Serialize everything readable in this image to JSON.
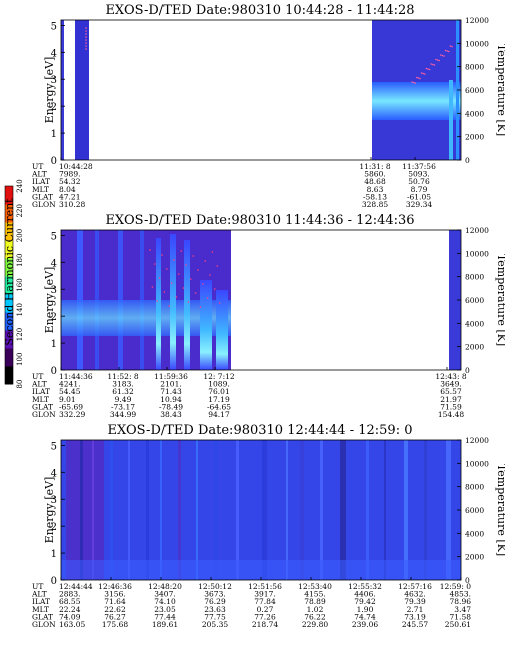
{
  "colorbar": {
    "label": "Second Harmonic Current",
    "ticks": [
      "80",
      "100",
      "120",
      "140",
      "160",
      "180",
      "200",
      "220",
      "240"
    ],
    "colors": [
      "#000000",
      "#3a0058",
      "#5a10b0",
      "#2060ff",
      "#00c8ff",
      "#20f0a0",
      "#80ff40",
      "#f0ff20",
      "#ffc000",
      "#ff6000",
      "#e01010"
    ]
  },
  "panels": [
    {
      "title": "EXOS-D/TED   Date:980310  10:44:28 - 11:44:28",
      "ylabel": "Energy [eV]",
      "y2label": "Temperature [K]",
      "yticks": [
        "0",
        "1",
        "2",
        "3",
        "4",
        "5"
      ],
      "y2ticks": [
        "0",
        "2000",
        "4000",
        "6000",
        "8000",
        "10000",
        "12000"
      ],
      "ylim": [
        0,
        5.2
      ],
      "y2lim": [
        0,
        12000
      ],
      "row_labels": [
        "UT",
        "ALT",
        "ILAT",
        "MLT",
        "GLAT",
        "GLON"
      ],
      "columns": [
        {
          "frac": 0.0,
          "values": [
            "10:44:28",
            "7989.",
            "54.32",
            "8.04",
            "47.21",
            "310.28"
          ]
        },
        {
          "frac": 0.775,
          "values": [
            "11:31: 8",
            "5860.",
            "48.68",
            "8.63",
            "-58.13",
            "328.85"
          ]
        },
        {
          "frac": 0.885,
          "values": [
            "11:37:56",
            "5093.",
            "50.76",
            "8.79",
            "-61.05",
            "329.34"
          ]
        }
      ]
    },
    {
      "title": "EXOS-D/TED   Date:980310  11:44:36 - 12:44:36",
      "ylabel": "Energy [eV]",
      "y2label": "Temperature [K]",
      "yticks": [
        "0",
        "1",
        "2",
        "3",
        "4",
        "5"
      ],
      "y2ticks": [
        "0",
        "2000",
        "4000",
        "6000",
        "8000",
        "10000",
        "12000"
      ],
      "ylim": [
        0,
        5.2
      ],
      "y2lim": [
        0,
        12000
      ],
      "row_labels": [
        "UT",
        "ALT",
        "ILAT",
        "MLT",
        "GLAT",
        "GLON"
      ],
      "columns": [
        {
          "frac": 0.0,
          "values": [
            "11:44:36",
            "4241.",
            "54.45",
            "9.01",
            "-65.69",
            "332.29"
          ]
        },
        {
          "frac": 0.145,
          "values": [
            "11:52: 8",
            "3183.",
            "61.32",
            "9.49",
            "-73.17",
            "344.99"
          ]
        },
        {
          "frac": 0.265,
          "values": [
            "11:59:36",
            "2101.",
            "71.43",
            "10.94",
            "-78.49",
            "38.43"
          ]
        },
        {
          "frac": 0.385,
          "values": [
            "12: 7:12",
            "1089.",
            "76.01",
            "17.19",
            "-64.65",
            "94.17"
          ]
        },
        {
          "frac": 0.965,
          "values": [
            "12:43: 8",
            "3649.",
            "65.57",
            "21.97",
            "71.59",
            "154.48"
          ]
        }
      ]
    },
    {
      "title": "EXOS-D/TED   Date:980310  12:44:44 - 12:59: 0",
      "ylabel": "Energy [eV]",
      "y2label": "Temperature [K]",
      "yticks": [
        "0",
        "1",
        "2",
        "3",
        "4",
        "5"
      ],
      "y2ticks": [
        "0",
        "2000",
        "4000",
        "6000",
        "8000",
        "10000",
        "12000"
      ],
      "ylim": [
        0,
        5.2
      ],
      "y2lim": [
        0,
        12000
      ],
      "row_labels": [
        "UT",
        "ALT",
        "ILAT",
        "MLT",
        "GLAT",
        "GLON"
      ],
      "columns": [
        {
          "frac": 0.0,
          "values": [
            "12:44:44",
            "2883.",
            "68.55",
            "22.24",
            "74.09",
            "163.05"
          ]
        },
        {
          "frac": 0.125,
          "values": [
            "12:46:36",
            "3156.",
            "71.64",
            "22.62",
            "76.27",
            "175.68"
          ]
        },
        {
          "frac": 0.25,
          "values": [
            "12:48:20",
            "3407.",
            "74.10",
            "23.05",
            "77.44",
            "189.61"
          ]
        },
        {
          "frac": 0.375,
          "values": [
            "12:50:12",
            "3673.",
            "76.29",
            "23.63",
            "77.75",
            "205.35"
          ]
        },
        {
          "frac": 0.5,
          "values": [
            "12:51:56",
            "3917.",
            "77.84",
            "0.27",
            "77.26",
            "218.74"
          ]
        },
        {
          "frac": 0.625,
          "values": [
            "12:53:40",
            "4155.",
            "78.89",
            "1.02",
            "76.22",
            "229.80"
          ]
        },
        {
          "frac": 0.75,
          "values": [
            "12:55:32",
            "4406.",
            "79.42",
            "1.90",
            "74.74",
            "239.06"
          ]
        },
        {
          "frac": 0.875,
          "values": [
            "12:57:16",
            "4632.",
            "79.39",
            "2.71",
            "73.19",
            "245.57"
          ]
        },
        {
          "frac": 1.0,
          "values": [
            "12:59: 0",
            "4853.",
            "78.96",
            "3.47",
            "71.58",
            "250.61"
          ]
        }
      ]
    }
  ],
  "chart_data": [
    {
      "type": "heatmap",
      "title": "EXOS-D/TED   Date:980310  10:44:28 - 11:44:28",
      "ylabel": "Energy [eV]",
      "y2label": "Temperature [K]",
      "ylim": [
        0,
        5.2
      ],
      "y2lim": [
        0,
        12000
      ],
      "x": [
        "10:44:28",
        "11:31: 8",
        "11:37:56"
      ],
      "colorbar_label": "Second Harmonic Current",
      "colorbar_range": [
        80,
        240
      ]
    },
    {
      "type": "heatmap",
      "title": "EXOS-D/TED   Date:980310  11:44:36 - 12:44:36",
      "ylabel": "Energy [eV]",
      "y2label": "Temperature [K]",
      "ylim": [
        0,
        5.2
      ],
      "y2lim": [
        0,
        12000
      ],
      "x": [
        "11:44:36",
        "11:52: 8",
        "11:59:36",
        "12: 7:12",
        "12:43: 8"
      ],
      "colorbar_label": "Second Harmonic Current",
      "colorbar_range": [
        80,
        240
      ]
    },
    {
      "type": "heatmap",
      "title": "EXOS-D/TED   Date:980310  12:44:44 - 12:59: 0",
      "ylabel": "Energy [eV]",
      "y2label": "Temperature [K]",
      "ylim": [
        0,
        5.2
      ],
      "y2lim": [
        0,
        12000
      ],
      "x": [
        "12:44:44",
        "12:46:36",
        "12:48:20",
        "12:50:12",
        "12:51:56",
        "12:53:40",
        "12:55:32",
        "12:57:16",
        "12:59: 0"
      ],
      "colorbar_label": "Second Harmonic Current",
      "colorbar_range": [
        80,
        240
      ]
    }
  ]
}
